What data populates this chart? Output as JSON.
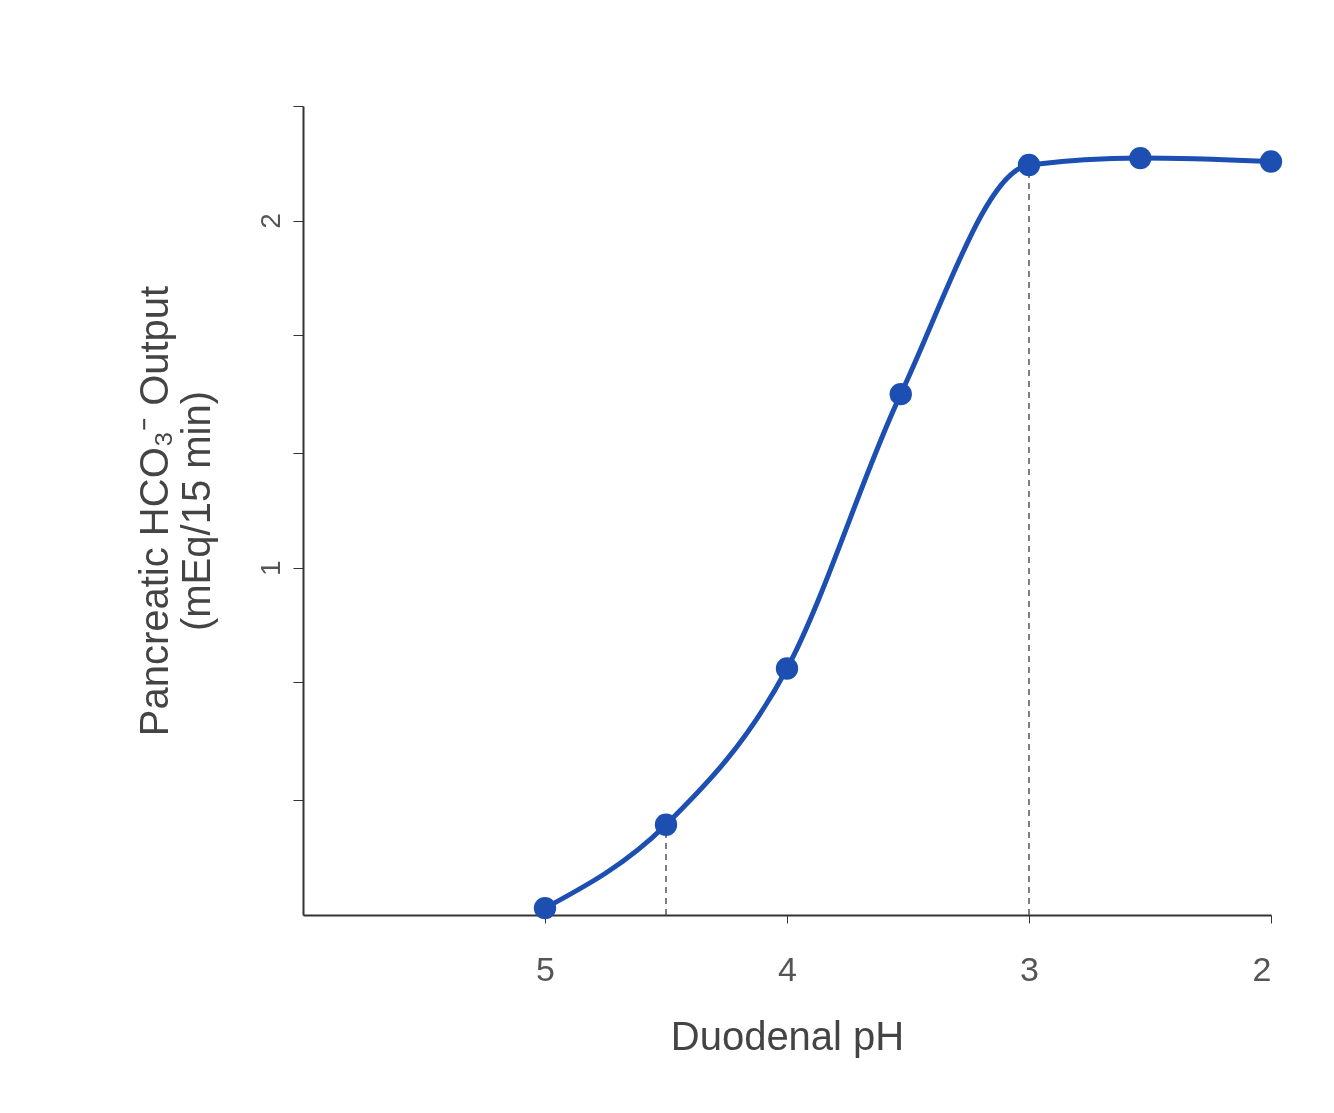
{
  "chart_data": {
    "type": "line",
    "xlabel": "Duodenal pH",
    "ylabel": "Pancreatic HCO₃⁻ Output\n(mEq/15 min)",
    "x": [
      5,
      4.5,
      4,
      3.53,
      3,
      2.54,
      2
    ],
    "series": [
      {
        "color": "#1d4fb3",
        "values": [
          0.02,
          0.26,
          0.71,
          1.5,
          2.16,
          2.18,
          2.17
        ]
      }
    ],
    "xlim": [
      6,
      2
    ],
    "xticks": [
      5,
      4,
      3,
      2
    ],
    "ylim": [
      0,
      2.33
    ],
    "yticks": [
      {
        "value": 0.33,
        "label": null
      },
      {
        "value": 0.67,
        "label": null
      },
      1,
      {
        "value": 1.33,
        "label": null
      },
      {
        "value": 1.67,
        "label": null
      },
      2,
      {
        "value": 2.33,
        "label": null
      }
    ],
    "ref_lines": [
      {
        "axis": "x",
        "value": 4.5,
        "line_style": "dashed"
      },
      {
        "axis": "x",
        "value": 3,
        "line_style": "dashed"
      }
    ],
    "grid": false,
    "marker": "circle",
    "line_style": "solid"
  }
}
